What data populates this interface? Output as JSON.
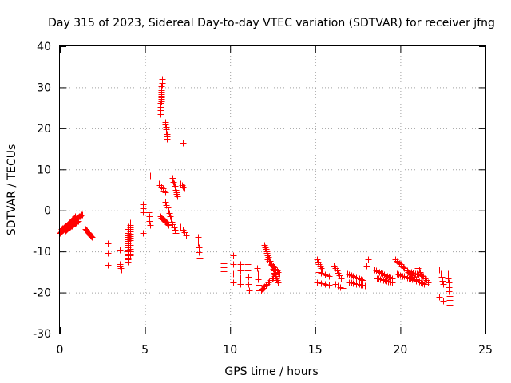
{
  "chart_data": {
    "type": "scatter",
    "title": "Day 315 of 2023, Sidereal Day-to-day VTEC variation (SDTVAR) for receiver jfng",
    "xlabel": "GPS time / hours",
    "ylabel": "SDTVAR / TECUs",
    "xlim": [
      0,
      25
    ],
    "ylim": [
      -30,
      40
    ],
    "x_ticks": [
      0,
      5,
      10,
      15,
      20,
      25
    ],
    "x_tick_labels": [
      "0",
      "5",
      "10",
      "15",
      "20",
      "25"
    ],
    "y_ticks": [
      -30,
      -20,
      -10,
      0,
      10,
      20,
      30,
      40
    ],
    "y_tick_labels": [
      "-30",
      "-20",
      "-10",
      "0",
      "10",
      "20",
      "30",
      "40"
    ],
    "grid": true,
    "marker": "+",
    "marker_color": "#ff0000",
    "series": [
      {
        "name": "SDTVAR",
        "segments": [
          {
            "x0": 0.0,
            "y0": -5.5,
            "x1": 0.9,
            "y1": -1.5,
            "n": 30
          },
          {
            "x0": 0.1,
            "y0": -4.5,
            "x1": 1.3,
            "y1": -1.0,
            "n": 30
          },
          {
            "x0": 0.3,
            "y0": -5.0,
            "x1": 1.1,
            "y1": -2.5,
            "n": 18
          },
          {
            "x0": 1.5,
            "y0": -4.5,
            "x1": 1.9,
            "y1": -6.8,
            "n": 10
          },
          {
            "x0": 2.8,
            "y0": -8.0,
            "x1": 2.8,
            "y1": -8.0,
            "n": 1
          },
          {
            "x0": 2.8,
            "y0": -10.3,
            "x1": 2.8,
            "y1": -10.3,
            "n": 1
          },
          {
            "x0": 2.8,
            "y0": -13.2,
            "x1": 2.8,
            "y1": -13.2,
            "n": 1
          },
          {
            "x0": 3.5,
            "y0": -9.6,
            "x1": 3.5,
            "y1": -9.6,
            "n": 1
          },
          {
            "x0": 3.5,
            "y0": -13.0,
            "x1": 3.6,
            "y1": -14.5,
            "n": 4
          },
          {
            "x0": 4.0,
            "y0": -4.0,
            "x1": 4.0,
            "y1": -12.5,
            "n": 18
          },
          {
            "x0": 4.15,
            "y0": -3.0,
            "x1": 4.15,
            "y1": -11.0,
            "n": 16
          },
          {
            "x0": 4.9,
            "y0": 1.5,
            "x1": 4.9,
            "y1": -0.5,
            "n": 3
          },
          {
            "x0": 4.9,
            "y0": -5.5,
            "x1": 4.9,
            "y1": -5.5,
            "n": 1
          },
          {
            "x0": 5.3,
            "y0": 8.5,
            "x1": 5.3,
            "y1": 8.5,
            "n": 1
          },
          {
            "x0": 5.2,
            "y0": -0.5,
            "x1": 5.3,
            "y1": -3.5,
            "n": 4
          },
          {
            "x0": 5.9,
            "y0": 23.5,
            "x1": 6.0,
            "y1": 32.0,
            "n": 20
          },
          {
            "x0": 6.2,
            "y0": 21.5,
            "x1": 6.3,
            "y1": 17.5,
            "n": 8
          },
          {
            "x0": 5.8,
            "y0": 6.5,
            "x1": 6.2,
            "y1": 4.5,
            "n": 6
          },
          {
            "x0": 5.9,
            "y0": -1.5,
            "x1": 6.4,
            "y1": -3.5,
            "n": 10
          },
          {
            "x0": 6.2,
            "y0": 2.0,
            "x1": 6.8,
            "y1": -5.5,
            "n": 12
          },
          {
            "x0": 6.6,
            "y0": 8.0,
            "x1": 6.9,
            "y1": 3.5,
            "n": 10
          },
          {
            "x0": 7.2,
            "y0": 16.5,
            "x1": 7.2,
            "y1": 16.5,
            "n": 1
          },
          {
            "x0": 7.1,
            "y0": 6.5,
            "x1": 7.3,
            "y1": 5.5,
            "n": 4
          },
          {
            "x0": 7.1,
            "y0": -4.0,
            "x1": 7.4,
            "y1": -6.0,
            "n": 4
          },
          {
            "x0": 8.1,
            "y0": -6.5,
            "x1": 8.2,
            "y1": -11.5,
            "n": 5
          },
          {
            "x0": 9.6,
            "y0": -12.8,
            "x1": 9.6,
            "y1": -14.8,
            "n": 3
          },
          {
            "x0": 10.2,
            "y0": -11.0,
            "x1": 10.2,
            "y1": -17.5,
            "n": 4
          },
          {
            "x0": 10.6,
            "y0": -13.0,
            "x1": 10.6,
            "y1": -18.0,
            "n": 4
          },
          {
            "x0": 11.0,
            "y0": -13.0,
            "x1": 11.1,
            "y1": -19.5,
            "n": 5
          },
          {
            "x0": 11.6,
            "y0": -14.0,
            "x1": 11.7,
            "y1": -19.5,
            "n": 5
          },
          {
            "x0": 11.8,
            "y0": -19.5,
            "x1": 12.6,
            "y1": -16.0,
            "n": 12
          },
          {
            "x0": 12.0,
            "y0": -8.5,
            "x1": 12.8,
            "y1": -17.5,
            "n": 20
          },
          {
            "x0": 12.2,
            "y0": -12.0,
            "x1": 12.9,
            "y1": -15.5,
            "n": 10
          },
          {
            "x0": 15.1,
            "y0": -12.0,
            "x1": 15.4,
            "y1": -14.5,
            "n": 6
          },
          {
            "x0": 15.1,
            "y0": -17.5,
            "x1": 15.9,
            "y1": -18.3,
            "n": 8
          },
          {
            "x0": 15.2,
            "y0": -15.0,
            "x1": 15.8,
            "y1": -16.0,
            "n": 6
          },
          {
            "x0": 16.1,
            "y0": -13.5,
            "x1": 16.5,
            "y1": -16.5,
            "n": 6
          },
          {
            "x0": 16.2,
            "y0": -18.0,
            "x1": 16.6,
            "y1": -19.0,
            "n": 4
          },
          {
            "x0": 16.9,
            "y0": -15.5,
            "x1": 17.8,
            "y1": -17.0,
            "n": 10
          },
          {
            "x0": 17.0,
            "y0": -17.5,
            "x1": 17.9,
            "y1": -18.3,
            "n": 10
          },
          {
            "x0": 18.1,
            "y0": -12.0,
            "x1": 18.0,
            "y1": -13.5,
            "n": 2
          },
          {
            "x0": 18.5,
            "y0": -14.5,
            "x1": 19.5,
            "y1": -16.5,
            "n": 12
          },
          {
            "x0": 18.6,
            "y0": -16.5,
            "x1": 19.5,
            "y1": -17.5,
            "n": 10
          },
          {
            "x0": 19.7,
            "y0": -12.0,
            "x1": 21.0,
            "y1": -17.0,
            "n": 18
          },
          {
            "x0": 19.8,
            "y0": -15.5,
            "x1": 21.5,
            "y1": -18.0,
            "n": 18
          },
          {
            "x0": 20.3,
            "y0": -14.5,
            "x1": 21.3,
            "y1": -16.0,
            "n": 10
          },
          {
            "x0": 21.0,
            "y0": -14.0,
            "x1": 21.6,
            "y1": -17.5,
            "n": 8
          },
          {
            "x0": 22.3,
            "y0": -14.5,
            "x1": 22.5,
            "y1": -18.0,
            "n": 5
          },
          {
            "x0": 22.3,
            "y0": -21.0,
            "x1": 22.5,
            "y1": -22.0,
            "n": 2
          },
          {
            "x0": 22.8,
            "y0": -15.5,
            "x1": 22.9,
            "y1": -23.0,
            "n": 8
          }
        ]
      }
    ]
  }
}
